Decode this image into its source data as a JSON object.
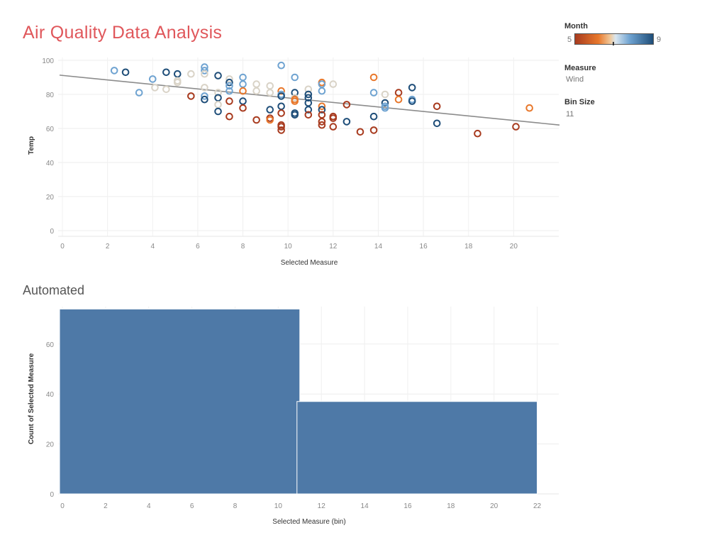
{
  "page": {
    "title": "Air Quality Data Analysis",
    "subtitle": "Automated"
  },
  "legend": {
    "month_label": "Month",
    "month_min": "5",
    "month_max": "9",
    "measure_label": "Measure",
    "measure_value": "Wind",
    "bin_label": "Bin Size",
    "bin_value": "11"
  },
  "colors": {
    "title": "#e0575b",
    "bar": "#4e79a7",
    "trend": "#8c8c8c",
    "month_scale": [
      "#a83b1f",
      "#e8782c",
      "#d9d3c7",
      "#6fa3d1",
      "#1f4e79"
    ]
  },
  "chart_data": [
    {
      "type": "scatter",
      "title": "",
      "xlabel": "Selected Measure",
      "ylabel": "Temp",
      "xlim": [
        0,
        22
      ],
      "ylim": [
        0,
        100
      ],
      "xticks": [
        0,
        2,
        4,
        6,
        8,
        10,
        12,
        14,
        16,
        18,
        20
      ],
      "yticks": [
        0,
        20,
        40,
        60,
        80,
        100
      ],
      "grid": true,
      "trendline": {
        "x": [
          0,
          22
        ],
        "y": [
          91,
          62
        ]
      },
      "color_by": "Month",
      "points": [
        {
          "x": 2.3,
          "y": 94,
          "m": 8
        },
        {
          "x": 2.8,
          "y": 93,
          "m": 9
        },
        {
          "x": 3.4,
          "y": 81,
          "m": 8
        },
        {
          "x": 4.0,
          "y": 89,
          "m": 8
        },
        {
          "x": 4.1,
          "y": 84,
          "m": 7
        },
        {
          "x": 4.6,
          "y": 93,
          "m": 9
        },
        {
          "x": 4.6,
          "y": 83,
          "m": 7
        },
        {
          "x": 5.1,
          "y": 92,
          "m": 9
        },
        {
          "x": 5.1,
          "y": 88,
          "m": 7
        },
        {
          "x": 5.1,
          "y": 87,
          "m": 7
        },
        {
          "x": 5.7,
          "y": 92,
          "m": 7
        },
        {
          "x": 5.7,
          "y": 79,
          "m": 5
        },
        {
          "x": 6.3,
          "y": 96,
          "m": 8
        },
        {
          "x": 6.3,
          "y": 94,
          "m": 8
        },
        {
          "x": 6.3,
          "y": 92,
          "m": 7
        },
        {
          "x": 6.3,
          "y": 84,
          "m": 7
        },
        {
          "x": 6.3,
          "y": 79,
          "m": 8
        },
        {
          "x": 6.3,
          "y": 77,
          "m": 9
        },
        {
          "x": 6.9,
          "y": 91,
          "m": 9
        },
        {
          "x": 6.9,
          "y": 81,
          "m": 7
        },
        {
          "x": 6.9,
          "y": 78,
          "m": 9
        },
        {
          "x": 6.9,
          "y": 74,
          "m": 7
        },
        {
          "x": 6.9,
          "y": 70,
          "m": 9
        },
        {
          "x": 7.4,
          "y": 89,
          "m": 7
        },
        {
          "x": 7.4,
          "y": 87,
          "m": 9
        },
        {
          "x": 7.4,
          "y": 85,
          "m": 8
        },
        {
          "x": 7.4,
          "y": 82,
          "m": 8
        },
        {
          "x": 7.4,
          "y": 76,
          "m": 5
        },
        {
          "x": 7.4,
          "y": 67,
          "m": 5
        },
        {
          "x": 8.0,
          "y": 90,
          "m": 8
        },
        {
          "x": 8.0,
          "y": 86,
          "m": 8
        },
        {
          "x": 8.0,
          "y": 82,
          "m": 6
        },
        {
          "x": 8.0,
          "y": 76,
          "m": 9
        },
        {
          "x": 8.0,
          "y": 72,
          "m": 5
        },
        {
          "x": 8.6,
          "y": 86,
          "m": 7
        },
        {
          "x": 8.6,
          "y": 82,
          "m": 7
        },
        {
          "x": 8.6,
          "y": 65,
          "m": 5
        },
        {
          "x": 9.2,
          "y": 85,
          "m": 7
        },
        {
          "x": 9.2,
          "y": 81,
          "m": 7
        },
        {
          "x": 9.2,
          "y": 71,
          "m": 9
        },
        {
          "x": 9.2,
          "y": 66,
          "m": 5
        },
        {
          "x": 9.2,
          "y": 65,
          "m": 6
        },
        {
          "x": 9.7,
          "y": 97,
          "m": 8
        },
        {
          "x": 9.7,
          "y": 82,
          "m": 6
        },
        {
          "x": 9.7,
          "y": 80,
          "m": 8
        },
        {
          "x": 9.7,
          "y": 79,
          "m": 9
        },
        {
          "x": 9.7,
          "y": 73,
          "m": 9
        },
        {
          "x": 9.7,
          "y": 69,
          "m": 5
        },
        {
          "x": 9.7,
          "y": 62,
          "m": 5
        },
        {
          "x": 9.7,
          "y": 61,
          "m": 5
        },
        {
          "x": 9.7,
          "y": 59,
          "m": 5
        },
        {
          "x": 10.3,
          "y": 90,
          "m": 8
        },
        {
          "x": 10.3,
          "y": 81,
          "m": 9
        },
        {
          "x": 10.3,
          "y": 78,
          "m": 7
        },
        {
          "x": 10.3,
          "y": 77,
          "m": 6
        },
        {
          "x": 10.3,
          "y": 76,
          "m": 6
        },
        {
          "x": 10.3,
          "y": 69,
          "m": 9
        },
        {
          "x": 10.3,
          "y": 68,
          "m": 9
        },
        {
          "x": 10.9,
          "y": 83,
          "m": 7
        },
        {
          "x": 10.9,
          "y": 80,
          "m": 9
        },
        {
          "x": 10.9,
          "y": 78,
          "m": 9
        },
        {
          "x": 10.9,
          "y": 75,
          "m": 9
        },
        {
          "x": 10.9,
          "y": 71,
          "m": 9
        },
        {
          "x": 10.9,
          "y": 68,
          "m": 5
        },
        {
          "x": 11.5,
          "y": 87,
          "m": 6
        },
        {
          "x": 11.5,
          "y": 86,
          "m": 8
        },
        {
          "x": 11.5,
          "y": 82,
          "m": 8
        },
        {
          "x": 11.5,
          "y": 73,
          "m": 6
        },
        {
          "x": 11.5,
          "y": 71,
          "m": 9
        },
        {
          "x": 11.5,
          "y": 68,
          "m": 5
        },
        {
          "x": 11.5,
          "y": 64,
          "m": 5
        },
        {
          "x": 11.5,
          "y": 62,
          "m": 5
        },
        {
          "x": 12.0,
          "y": 86,
          "m": 7
        },
        {
          "x": 12.0,
          "y": 67,
          "m": 5
        },
        {
          "x": 12.0,
          "y": 66,
          "m": 5
        },
        {
          "x": 12.0,
          "y": 61,
          "m": 5
        },
        {
          "x": 12.6,
          "y": 74,
          "m": 5
        },
        {
          "x": 12.6,
          "y": 64,
          "m": 9
        },
        {
          "x": 13.2,
          "y": 58,
          "m": 5
        },
        {
          "x": 13.8,
          "y": 90,
          "m": 6
        },
        {
          "x": 13.8,
          "y": 81,
          "m": 8
        },
        {
          "x": 13.8,
          "y": 67,
          "m": 9
        },
        {
          "x": 13.8,
          "y": 59,
          "m": 5
        },
        {
          "x": 14.3,
          "y": 80,
          "m": 7
        },
        {
          "x": 14.3,
          "y": 75,
          "m": 9
        },
        {
          "x": 14.3,
          "y": 73,
          "m": 8
        },
        {
          "x": 14.3,
          "y": 72,
          "m": 8
        },
        {
          "x": 14.9,
          "y": 81,
          "m": 5
        },
        {
          "x": 14.9,
          "y": 77,
          "m": 6
        },
        {
          "x": 15.5,
          "y": 84,
          "m": 9
        },
        {
          "x": 15.5,
          "y": 77,
          "m": 8
        },
        {
          "x": 15.5,
          "y": 76,
          "m": 9
        },
        {
          "x": 16.6,
          "y": 73,
          "m": 5
        },
        {
          "x": 16.6,
          "y": 63,
          "m": 9
        },
        {
          "x": 18.4,
          "y": 57,
          "m": 5
        },
        {
          "x": 20.1,
          "y": 61,
          "m": 5
        },
        {
          "x": 20.7,
          "y": 72,
          "m": 6
        }
      ]
    },
    {
      "type": "bar",
      "title": "",
      "xlabel": "Selected Measure (bin)",
      "ylabel": "Count of Selected Measure",
      "xlim": [
        0,
        23
      ],
      "ylim": [
        0,
        75
      ],
      "xticks": [
        0,
        2,
        4,
        6,
        8,
        10,
        12,
        14,
        16,
        18,
        20,
        22
      ],
      "yticks": [
        0,
        20,
        40,
        60
      ],
      "grid": true,
      "bins": [
        {
          "start": 0,
          "end": 11,
          "value": 74
        },
        {
          "start": 11,
          "end": 22,
          "value": 37
        }
      ]
    }
  ]
}
